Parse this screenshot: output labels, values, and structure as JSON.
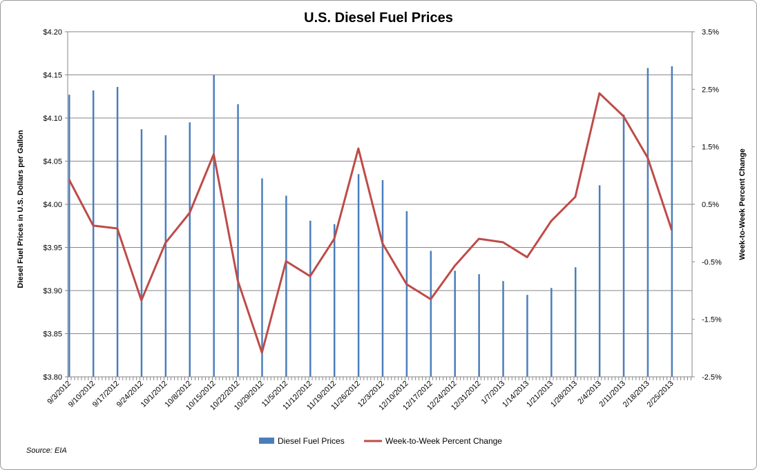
{
  "chart_data": {
    "type": "bar",
    "title": "U.S. Diesel Fuel Prices",
    "ylabel": "Diesel Fuel Prices in U.S. Dollars  per Gallon",
    "y2label": "Week-to-Week Percent Change",
    "ylim": [
      3.8,
      4.2
    ],
    "y2lim": [
      -2.5,
      3.5
    ],
    "yticks": [
      "$3.80",
      "$3.85",
      "$3.90",
      "$3.95",
      "$4.00",
      "$4.05",
      "$4.10",
      "$4.15",
      "$4.20"
    ],
    "y2ticks": [
      "-2.5%",
      "-1.5%",
      "-0.5%",
      "0.5%",
      "1.5%",
      "2.5%",
      "3.5%"
    ],
    "grid": true,
    "legend_position": "bottom",
    "categories": [
      "9/3/2012",
      "9/10/2012",
      "9/17/2012",
      "9/24/2012",
      "10/1/2012",
      "10/8/2012",
      "10/15/2012",
      "10/22/2012",
      "10/29/2012",
      "11/5/2012",
      "11/12/2012",
      "11/19/2012",
      "11/26/2012",
      "12/3/2012",
      "12/10/2012",
      "12/17/2012",
      "12/24/2012",
      "12/31/2012",
      "1/7/2013",
      "1/14/2013",
      "1/21/2013",
      "1/28/2013",
      "2/4/2013",
      "2/11/2013",
      "2/18/2013",
      "2/25/2013"
    ],
    "series": [
      {
        "name": "Diesel Fuel Prices",
        "axis": "left",
        "kind": "bar",
        "color": "#4a7ebb",
        "values": [
          4.127,
          4.132,
          4.136,
          4.087,
          4.08,
          4.095,
          4.15,
          4.116,
          4.03,
          4.01,
          3.981,
          3.977,
          4.035,
          4.028,
          3.992,
          3.946,
          3.923,
          3.919,
          3.911,
          3.895,
          3.903,
          3.927,
          4.022,
          4.104,
          4.158,
          4.16
        ]
      },
      {
        "name": "Week-to-Week Percent Change",
        "axis": "right",
        "kind": "line",
        "color": "#be4b48",
        "values": [
          0.93,
          0.13,
          0.08,
          -1.17,
          -0.17,
          0.35,
          1.37,
          -0.83,
          -2.08,
          -0.49,
          -0.75,
          -0.1,
          1.47,
          -0.18,
          -0.89,
          -1.15,
          -0.57,
          -0.1,
          -0.16,
          -0.42,
          0.21,
          0.63,
          2.43,
          2.03,
          1.31,
          0.05
        ]
      }
    ]
  },
  "source": "Source:  EIA"
}
